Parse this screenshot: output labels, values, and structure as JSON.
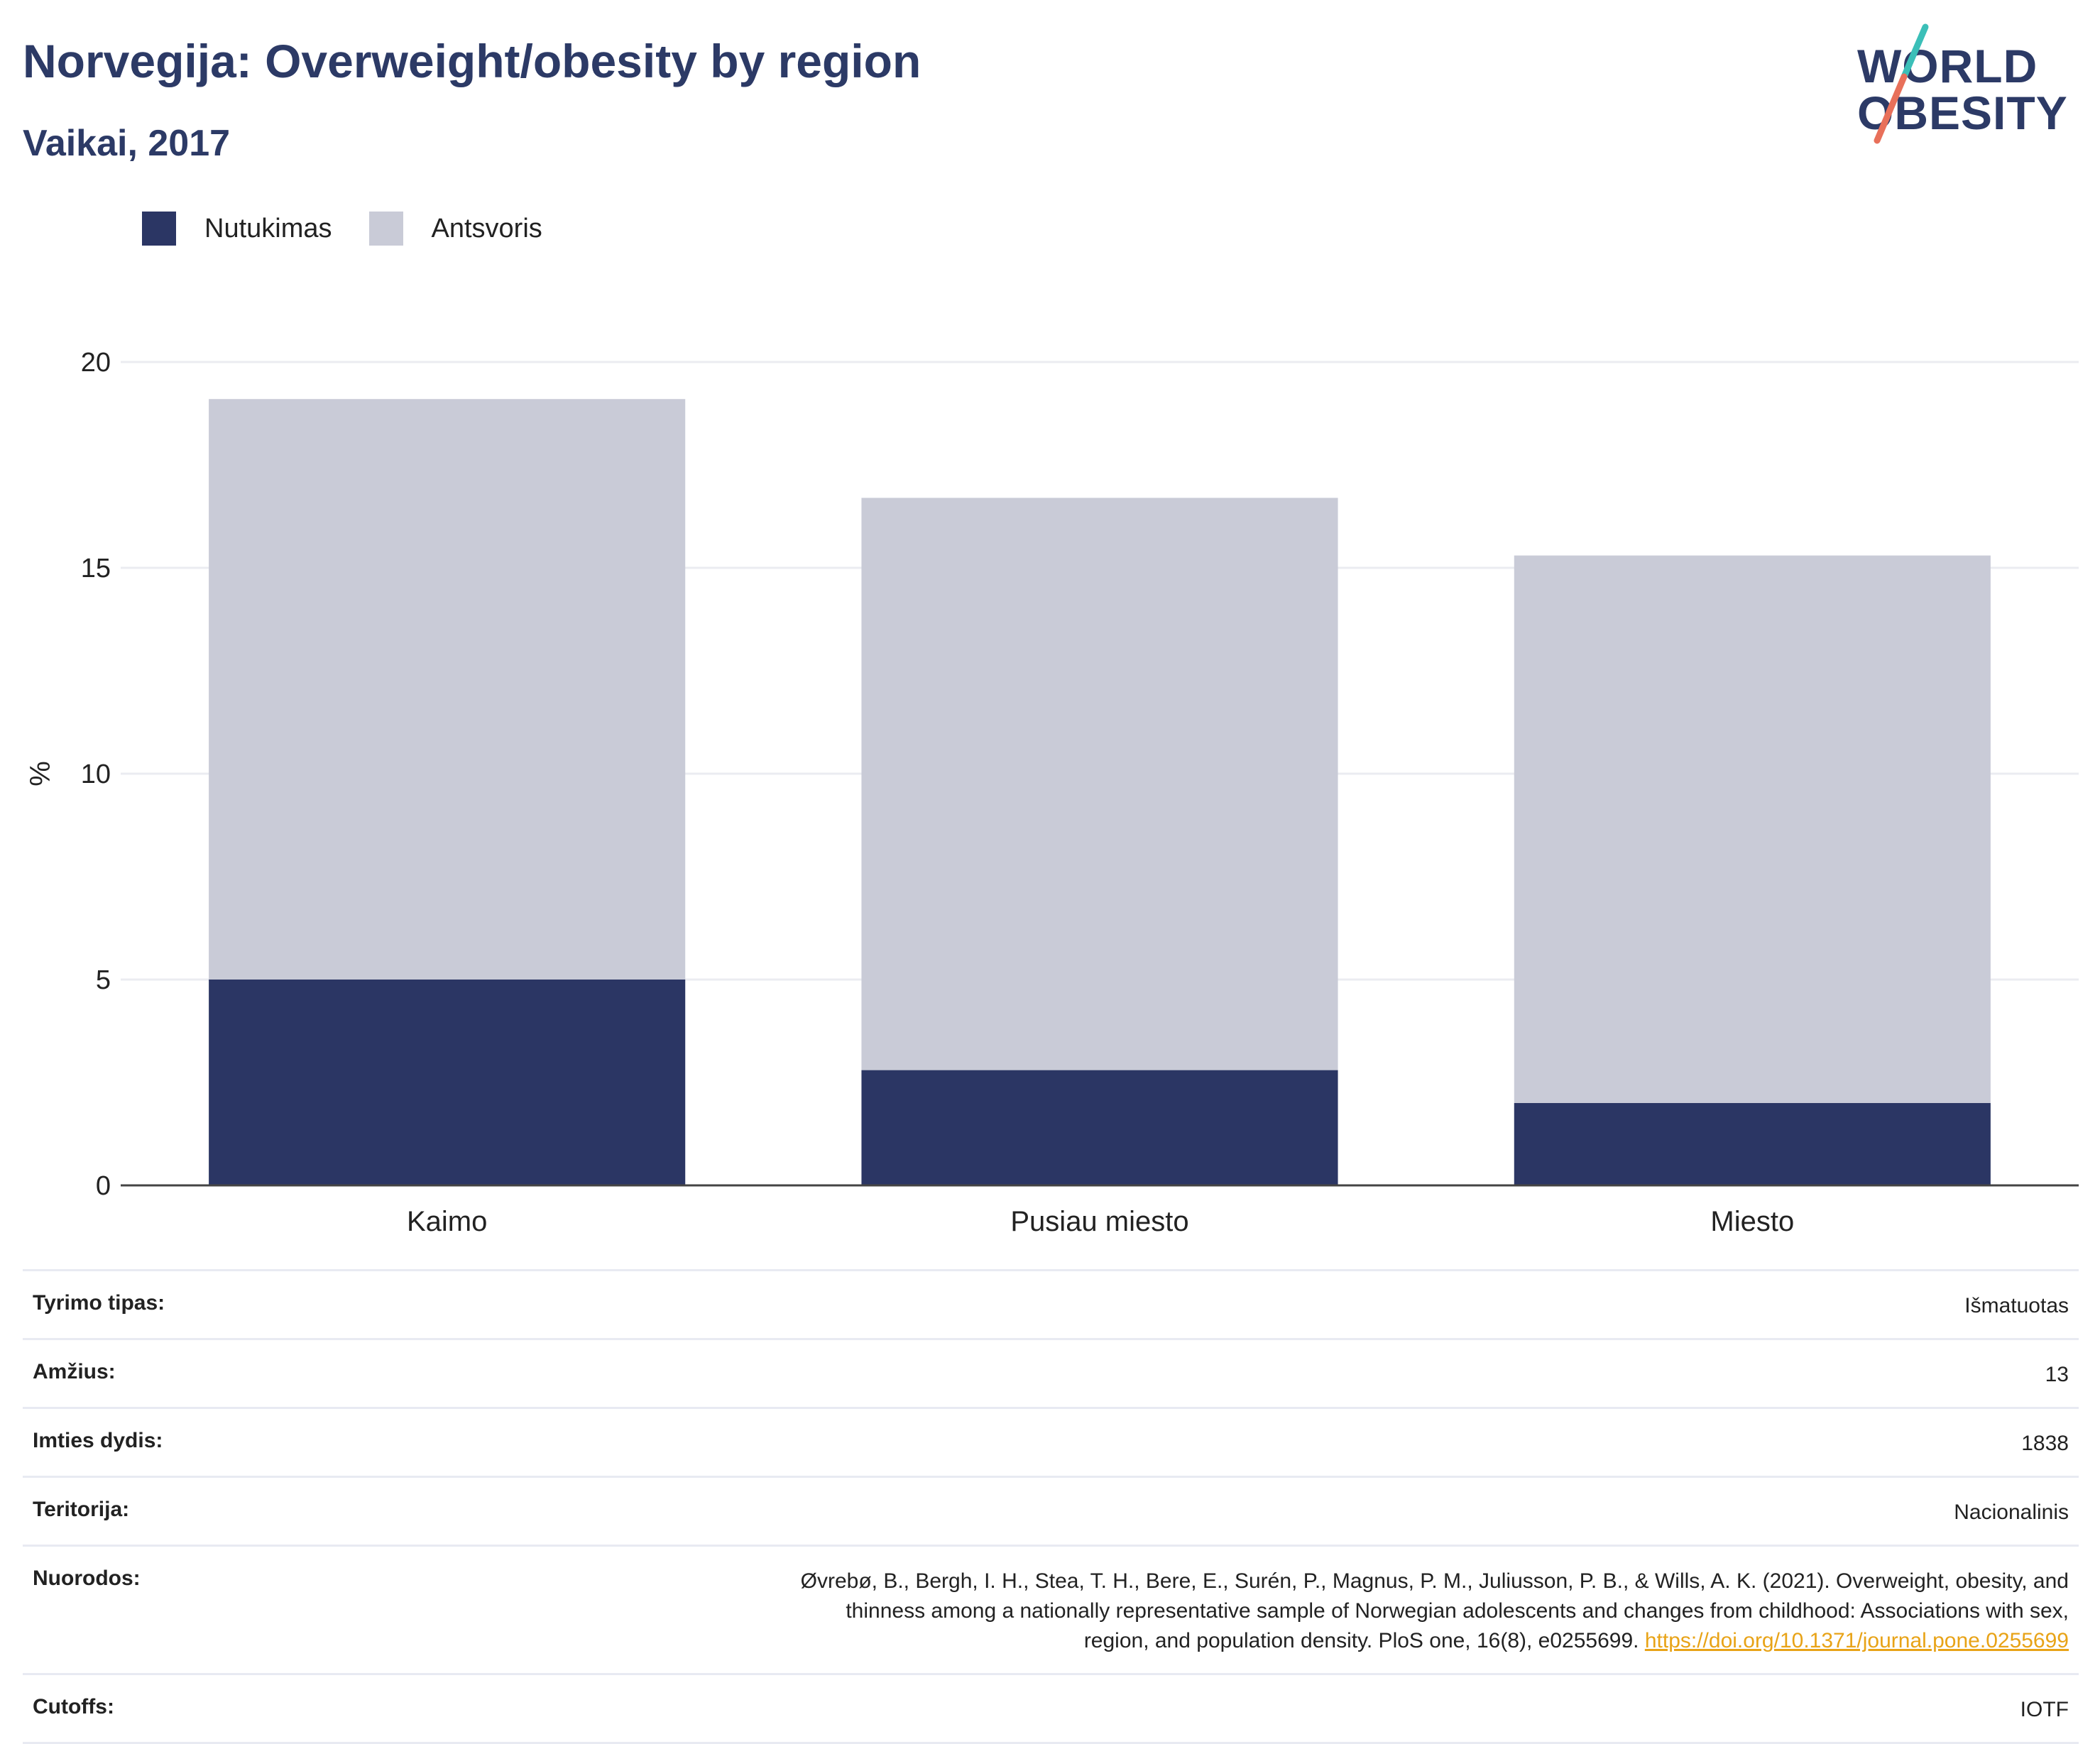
{
  "header": {
    "title": "Norvegija: Overweight/obesity by region",
    "subtitle": "Vaikai, 2017"
  },
  "logo": {
    "line1": "WORLD",
    "line2": "OBESITY",
    "colors": {
      "text": "#2c3a66",
      "slash_top": "#3bbfb8",
      "slash_bottom": "#e8705a"
    }
  },
  "legend": {
    "items": [
      {
        "label": "Nutukimas",
        "color": "#2b3664"
      },
      {
        "label": "Antsvoris",
        "color": "#c9cbd7"
      }
    ]
  },
  "chart_data": {
    "type": "bar",
    "stacked": true,
    "categories": [
      "Kaimo",
      "Pusiau miesto",
      "Miesto"
    ],
    "series": [
      {
        "name": "Nutukimas",
        "values": [
          5.0,
          2.8,
          2.0
        ],
        "color": "#2b3664"
      },
      {
        "name": "Antsvoris",
        "values": [
          14.1,
          13.9,
          13.3
        ],
        "color": "#c9cbd7"
      }
    ],
    "ylabel": "%",
    "xlabel": "",
    "ylim": [
      0,
      20
    ],
    "yticks": [
      "0",
      "5",
      "10",
      "15",
      "20"
    ],
    "grid": true,
    "legend_position": "top-left"
  },
  "info": {
    "rows": [
      {
        "label": "Tyrimo tipas:",
        "value": "Išmatuotas"
      },
      {
        "label": "Amžius:",
        "value": "13"
      },
      {
        "label": "Imties dydis:",
        "value": "1838"
      },
      {
        "label": "Teritorija:",
        "value": "Nacionalinis"
      },
      {
        "label": "Cutoffs:",
        "value": "IOTF"
      }
    ],
    "reference": {
      "label": "Nuorodos:",
      "line1": "Øvrebø, B., Bergh, I. H., Stea, T. H., Bere, E., Surén, P., Magnus, P. M., Juliusson, P. B., & Wills, A. K. (2021). Overweight, obesity, and",
      "line2": "thinness among a nationally representative sample of Norwegian adolescents and changes from childhood: Associations with sex,",
      "line3": "region, and population density. PloS one, 16(8), e0255699.",
      "link": "https://doi.org/10.1371/journal.pone.0255699"
    }
  }
}
